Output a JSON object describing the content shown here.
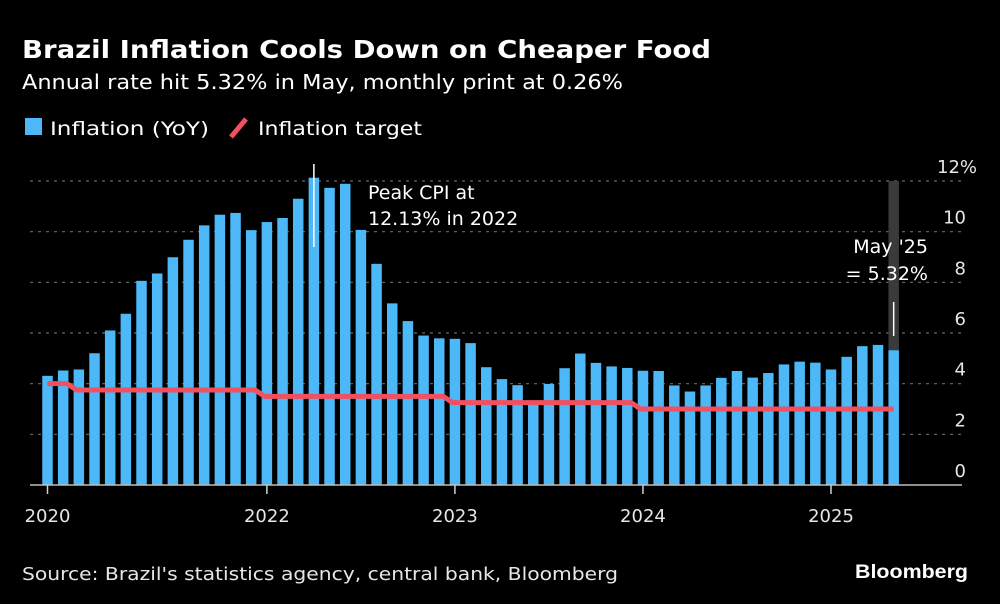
{
  "header": {
    "title": "Brazil Inflation Cools Down on Cheaper Food",
    "subtitle": "Annual rate hit 5.32% in May, monthly print at 0.26%"
  },
  "legend": [
    {
      "label": "Inflation (YoY)",
      "color": "#4cb8f7",
      "shape": "square"
    },
    {
      "label": "Inflation target",
      "color": "#f0505f",
      "shape": "line"
    }
  ],
  "footer": {
    "source": "Source: Brazil's statistics agency, central bank, Bloomberg",
    "logo": "Bloomberg"
  },
  "chart_data": {
    "type": "bar",
    "title": "Brazil Inflation Cools Down on Cheaper Food",
    "subtitle": "Annual rate hit 5.32% in May, monthly print at 0.26%",
    "categories": [
      "Nov 2020",
      "Dec 2020",
      "Jan 2021",
      "Feb 2021",
      "Mar 2021",
      "Apr 2021",
      "May 2021",
      "Jun 2021",
      "Jul 2021",
      "Aug 2021",
      "Sep 2021",
      "Oct 2021",
      "Nov 2021",
      "Dec 2021",
      "Jan 2022",
      "Feb 2022",
      "Mar 2022",
      "Apr 2022",
      "May 2022",
      "Jun 2022",
      "Jul 2022",
      "Aug 2022",
      "Sep 2022",
      "Oct 2022",
      "Nov 2022",
      "Dec 2022",
      "Jan 2023",
      "Feb 2023",
      "Mar 2023",
      "Apr 2023",
      "May 2023",
      "Jun 2023",
      "Jul 2023",
      "Aug 2023",
      "Sep 2023",
      "Oct 2023",
      "Nov 2023",
      "Dec 2023",
      "Jan 2024",
      "Feb 2024",
      "Mar 2024",
      "Apr 2024",
      "May 2024",
      "Jun 2024",
      "Jul 2024",
      "Aug 2024",
      "Sep 2024",
      "Oct 2024",
      "Nov 2024",
      "Dec 2024",
      "Jan 2025",
      "Feb 2025",
      "Mar 2025",
      "Apr 2025",
      "May 2025"
    ],
    "series": [
      {
        "name": "Inflation (YoY)",
        "type": "bar",
        "color": "#4cb8f7",
        "values": [
          4.31,
          4.52,
          4.56,
          5.2,
          6.1,
          6.76,
          8.06,
          8.35,
          8.99,
          9.68,
          10.25,
          10.67,
          10.74,
          10.06,
          10.38,
          10.54,
          11.3,
          12.13,
          11.73,
          11.89,
          10.07,
          8.73,
          7.17,
          6.47,
          5.9,
          5.79,
          5.77,
          5.6,
          4.65,
          4.18,
          3.94,
          3.16,
          3.99,
          4.61,
          5.19,
          4.82,
          4.68,
          4.62,
          4.51,
          4.5,
          3.93,
          3.69,
          3.93,
          4.23,
          4.5,
          4.24,
          4.42,
          4.76,
          4.87,
          4.83,
          4.56,
          5.06,
          5.48,
          5.53,
          5.32
        ]
      },
      {
        "name": "Inflation target",
        "type": "line",
        "color": "#f0505f",
        "values": [
          4.0,
          4.0,
          3.75,
          3.75,
          3.75,
          3.75,
          3.75,
          3.75,
          3.75,
          3.75,
          3.75,
          3.75,
          3.75,
          3.75,
          3.5,
          3.5,
          3.5,
          3.5,
          3.5,
          3.5,
          3.5,
          3.5,
          3.5,
          3.5,
          3.5,
          3.5,
          3.25,
          3.25,
          3.25,
          3.25,
          3.25,
          3.25,
          3.25,
          3.25,
          3.25,
          3.25,
          3.25,
          3.25,
          3.0,
          3.0,
          3.0,
          3.0,
          3.0,
          3.0,
          3.0,
          3.0,
          3.0,
          3.0,
          3.0,
          3.0,
          3.0,
          3.0,
          3.0,
          3.0,
          3.0
        ]
      }
    ],
    "x_ticks": [
      {
        "label": "2020",
        "category": "Nov 2020"
      },
      {
        "label": "2022",
        "category": "Jan 2022"
      },
      {
        "label": "2023",
        "category": "Jan 2023"
      },
      {
        "label": "2024",
        "category": "Jan 2024"
      },
      {
        "label": "2025",
        "category": "Jan 2025"
      }
    ],
    "y_ticks": [
      0,
      2,
      4,
      6,
      8,
      10,
      12
    ],
    "y_tick_labels": [
      "0",
      "2",
      "4",
      "6",
      "8",
      "10",
      "12%"
    ],
    "ylim": [
      0,
      12
    ],
    "y_axis_position": "right",
    "grid": true,
    "legend_position": "top-left",
    "highlight_category": "May 2025",
    "annotations": [
      {
        "category": "Apr 2022",
        "lines": [
          "Peak CPI at",
          "12.13% in 2022"
        ]
      },
      {
        "category": "May 2025",
        "lines": [
          "May '25",
          "= 5.32%"
        ]
      }
    ]
  }
}
